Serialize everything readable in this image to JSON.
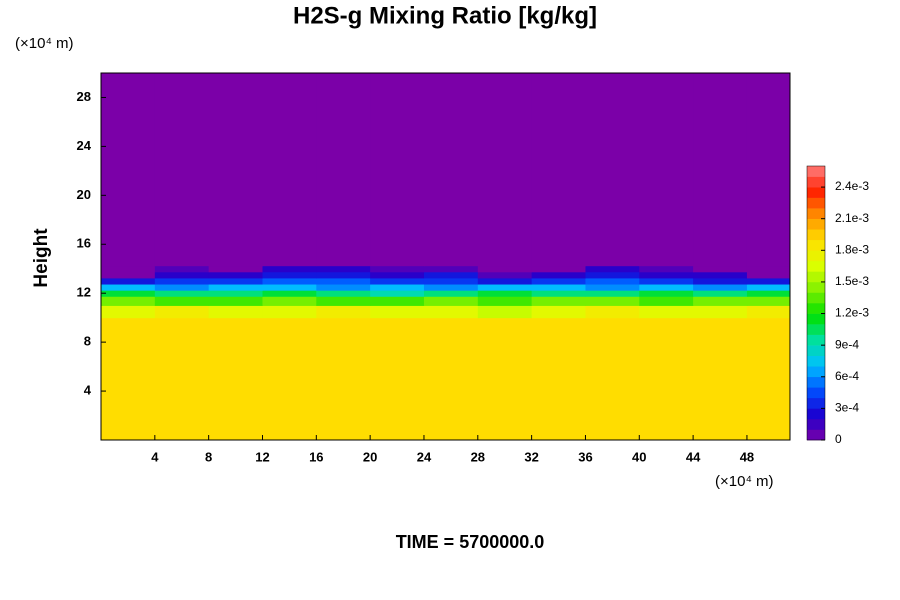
{
  "chart_data": {
    "type": "contour",
    "title": "H2S-g Mixing Ratio [kg/kg]",
    "ylabel": "Height",
    "xunit": "(×10⁴ m)",
    "yunit": "(×10⁴ m)",
    "annotation": "TIME = 5700000.0",
    "xlim": [
      0,
      51.2
    ],
    "ylim": [
      0,
      30
    ],
    "xticks": [
      4,
      8,
      12,
      16,
      20,
      24,
      28,
      32,
      36,
      40,
      44,
      48
    ],
    "yticks": [
      4,
      8,
      12,
      16,
      20,
      24,
      28
    ],
    "xedges": [
      0,
      4,
      8,
      12,
      16,
      20,
      24,
      28,
      32,
      36,
      40,
      44,
      48,
      51.2
    ],
    "yedges": [
      0,
      10,
      11,
      11.75,
      12.25,
      12.75,
      13.25,
      13.75,
      14.25,
      30
    ],
    "values": [
      [
        0.0019,
        0.0019,
        0.0019,
        0.0019,
        0.0019,
        0.0019,
        0.0019,
        0.0019,
        0.0019,
        0.0019,
        0.0019,
        0.0019,
        0.0019
      ],
      [
        0.0017,
        0.0018,
        0.0017,
        0.0017,
        0.0018,
        0.0017,
        0.0017,
        0.0016,
        0.0017,
        0.0018,
        0.0017,
        0.0017,
        0.0018
      ],
      [
        0.0014,
        0.0013,
        0.0013,
        0.0014,
        0.0013,
        0.0013,
        0.0014,
        0.0013,
        0.0014,
        0.0014,
        0.0013,
        0.0014,
        0.0014
      ],
      [
        0.0011,
        0.001,
        0.001,
        0.0011,
        0.001,
        0.0009,
        0.001,
        0.0011,
        0.001,
        0.001,
        0.0011,
        0.001,
        0.0011
      ],
      [
        0.0007,
        0.0006,
        0.0007,
        0.0007,
        0.0006,
        0.0007,
        0.0006,
        0.0007,
        0.0007,
        0.0006,
        0.0007,
        0.0006,
        0.0007
      ],
      [
        0.0003,
        0.0004,
        0.0004,
        0.0005,
        0.0005,
        0.0004,
        0.0004,
        0.0003,
        0.0004,
        0.0005,
        0.0004,
        0.0003,
        0.0003
      ],
      [
        0,
        0.0002,
        0.0002,
        0.0003,
        0.0003,
        0.0002,
        0.0003,
        0.0001,
        0.0002,
        0.0003,
        0.0002,
        0.0002,
        0
      ],
      [
        0,
        0.0001,
        0,
        0.0002,
        0.0002,
        0.0001,
        0.0001,
        0,
        0,
        0.0002,
        0.0001,
        0,
        0
      ],
      [
        0,
        0,
        0,
        0,
        0,
        0,
        0,
        0,
        0,
        0,
        0,
        0,
        0
      ]
    ],
    "clim": [
      0,
      0.0026
    ],
    "cticks": [
      0,
      {
        "value": 0.0003,
        "label": "3e-4"
      },
      {
        "value": 0.0006,
        "label": "6e-4"
      },
      {
        "value": 0.0009,
        "label": "9e-4"
      },
      {
        "value": 0.0012,
        "label": "1.2e-3"
      },
      {
        "value": 0.0015,
        "label": "1.5e-3"
      },
      {
        "value": 0.0018,
        "label": "1.8e-3"
      },
      {
        "value": 0.0021,
        "label": "2.1e-3"
      },
      {
        "value": 0.0024,
        "label": "2.4e-3"
      }
    ],
    "colormap": [
      "#7b00a8",
      "#1a00d0",
      "#0050ff",
      "#00c0ff",
      "#00e0a0",
      "#00e000",
      "#80f000",
      "#dcff00",
      "#ffe000",
      "#ff9000",
      "#ff2000",
      "#ff8080"
    ]
  }
}
